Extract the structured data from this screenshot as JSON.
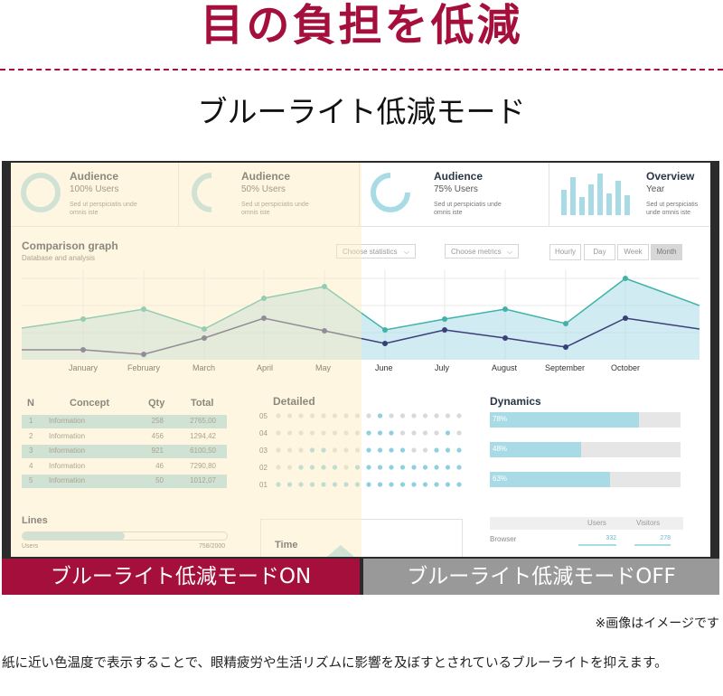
{
  "headline": "目の負担を低減",
  "subheadline": "ブルーライト低減モード",
  "screen": {
    "cards": [
      {
        "title": "Audience",
        "subtitle": "100% Users",
        "desc": "Sed ut perspiciatis unde omnis iste"
      },
      {
        "title": "Audience",
        "subtitle": "50% Users",
        "desc": "Sed ut perspiciatis unde omnis iste"
      },
      {
        "title": "Audience",
        "subtitle": "75% Users",
        "desc": "Sed ut perspiciatis unde omnis iste"
      },
      {
        "title": "Overview",
        "subtitle": "Year",
        "desc": "Sed ut perspiciatis unde omnis iste"
      }
    ],
    "comparison": {
      "title": "Comparison graph",
      "subtitle": "Database and analysis",
      "select_statistics": "Choose statistics",
      "select_metrics": "Choose metrics",
      "periods": [
        "Hourly",
        "Day",
        "Week",
        "Month"
      ],
      "active_period": "Month",
      "months": [
        "January",
        "February",
        "March",
        "April",
        "May",
        "June",
        "July",
        "August",
        "September",
        "October"
      ]
    },
    "table": {
      "headers": [
        "N",
        "Concept",
        "Qty",
        "Total"
      ],
      "rows": [
        {
          "n": "1",
          "concept": "Information",
          "qty": "258",
          "total": "2765,00"
        },
        {
          "n": "2",
          "concept": "Information",
          "qty": "456",
          "total": "1294,42"
        },
        {
          "n": "3",
          "concept": "Information",
          "qty": "921",
          "total": "6100,50"
        },
        {
          "n": "4",
          "concept": "Information",
          "qty": "46",
          "total": "7290,80"
        },
        {
          "n": "5",
          "concept": "Information",
          "qty": "50",
          "total": "1012,07"
        }
      ]
    },
    "detailed": {
      "title": "Detailed",
      "levels": [
        "05",
        "04",
        "03",
        "02",
        "01"
      ]
    },
    "dynamics": {
      "title": "Dynamics",
      "bars": [
        {
          "label": "78%",
          "value": 0.78
        },
        {
          "label": "48%",
          "value": 0.48
        },
        {
          "label": "63%",
          "value": 0.63
        }
      ]
    },
    "lines": {
      "title": "Lines",
      "label": "Users",
      "value": "758/2000"
    },
    "time": {
      "title": "Time"
    },
    "browser": {
      "columns": [
        "Users",
        "Visitors"
      ],
      "row_label": "Browser",
      "users": "332",
      "visitors": "278"
    }
  },
  "banner_on": "ブルーライト低減モードON",
  "banner_off": "ブルーライト低減モードOFF",
  "note": "※画像はイメージです",
  "body_text": "紙に近い色温度で表示することで、眼精疲労や生活リズムに影響を及ぼすとされているブルーライトを抑えます。",
  "colors": {
    "accent": "#a50f3c",
    "banner_on": "#a50f3c",
    "banner_off": "#999999",
    "chart_fill": "#a9dbe6",
    "teal": "#3fb3a8",
    "navy": "#3a3f7a"
  }
}
